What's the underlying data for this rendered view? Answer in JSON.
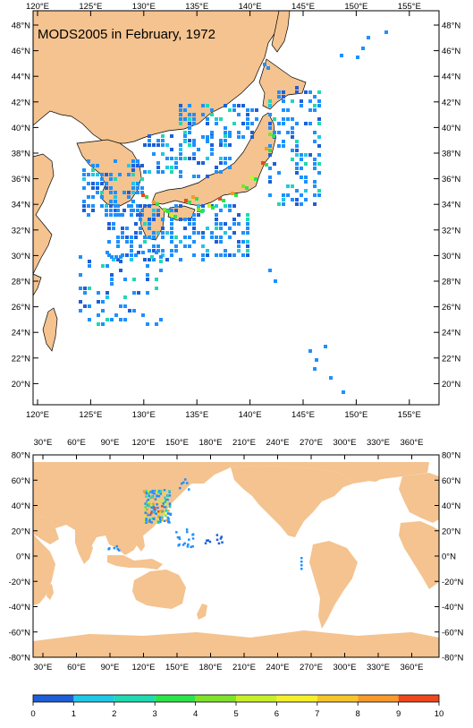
{
  "top_map": {
    "title": "MODS2005 in February, 1972",
    "lon_labels": [
      "120°E",
      "125°E",
      "130°E",
      "135°E",
      "140°E",
      "145°E",
      "150°E",
      "155°E"
    ],
    "lat_labels": [
      "48°N",
      "46°N",
      "44°N",
      "42°N",
      "40°N",
      "38°N",
      "36°N",
      "34°N",
      "32°N",
      "30°N",
      "28°N",
      "26°N",
      "24°N",
      "22°N",
      "20°N"
    ],
    "land_color": "#f4c38f",
    "ocean_color": "#ffffff"
  },
  "world_map": {
    "lon_labels": [
      "30°E",
      "60°E",
      "90°E",
      "120°E",
      "150°E",
      "180°E",
      "210°E",
      "240°E",
      "270°E",
      "300°E",
      "330°E",
      "360°E"
    ],
    "lat_labels": [
      "80°N",
      "60°N",
      "40°N",
      "20°N",
      "0°N",
      "-20°N",
      "-40°N",
      "-60°N",
      "-80°N"
    ]
  },
  "colorbar": {
    "labels": [
      "0",
      "1",
      "2",
      "3",
      "4",
      "5",
      "6",
      "7",
      "8",
      "9",
      "10"
    ],
    "colors": [
      "#1e5fd8",
      "#1e90ff",
      "#21c7e6",
      "#20d9b0",
      "#2ce44a",
      "#7fe32a",
      "#c8ef2a",
      "#f5f02a",
      "#f7c52a",
      "#f79a2a",
      "#f0461e"
    ]
  }
}
